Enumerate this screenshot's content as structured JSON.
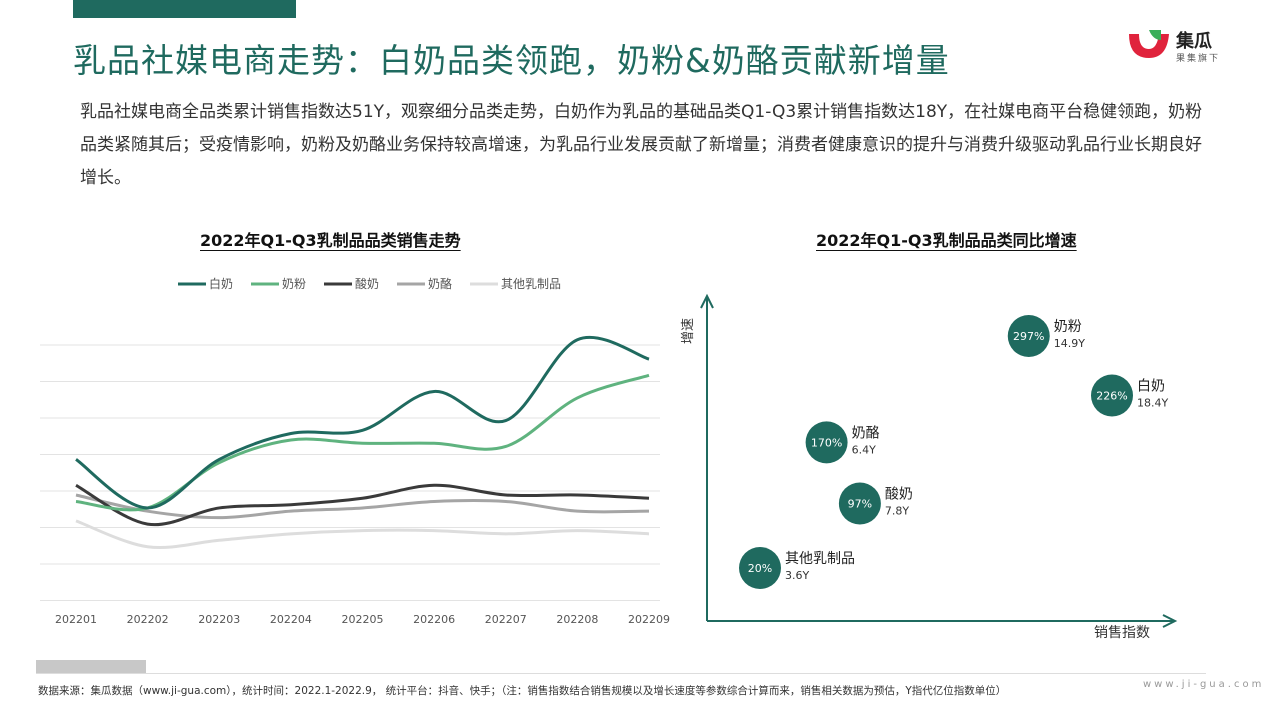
{
  "header": {
    "title": "乳品社媒电商走势：白奶品类领跑，奶粉&奶酪贡献新增量",
    "logo_name": "集瓜",
    "logo_slogan": "果集旗下"
  },
  "description": "乳品社媒电商全品类累计销售指数达51Y，观察细分品类走势，白奶作为乳品的基础品类Q1-Q3累计销售指数达18Y，在社媒电商平台稳健领跑，奶粉品类紧随其后；受疫情影响，奶粉及奶酪业务保持较高增速，为乳品行业发展贡献了新增量；消费者健康意识的提升与消费升级驱动乳品行业长期良好增长。",
  "chart_data": [
    {
      "type": "line",
      "title": "2022年Q1-Q3乳制品品类销售走势",
      "x": [
        "202201",
        "202202",
        "202203",
        "202204",
        "202205",
        "202206",
        "202207",
        "202208",
        "202209"
      ],
      "series": [
        {
          "name": "白奶",
          "color": "#1f6a5f",
          "values": [
            30,
            15,
            30,
            38,
            39,
            51,
            42,
            67,
            61
          ]
        },
        {
          "name": "奶粉",
          "color": "#5fb37f",
          "values": [
            17,
            15,
            29,
            36,
            35,
            35,
            34,
            49,
            56
          ]
        },
        {
          "name": "酸奶",
          "color": "#3a3a3a",
          "values": [
            22,
            10,
            15,
            16,
            18,
            22,
            19,
            19,
            18
          ]
        },
        {
          "name": "奶酪",
          "color": "#a5a5a5",
          "values": [
            19,
            14,
            12,
            14,
            15,
            17,
            17,
            14,
            14
          ]
        },
        {
          "name": "其他乳制品",
          "color": "#dddddd",
          "values": [
            11,
            3,
            5,
            7,
            8,
            8,
            7,
            8,
            7
          ]
        }
      ],
      "ylim": [
        -15,
        70
      ],
      "legend": "top",
      "grid": true
    },
    {
      "type": "scatter",
      "title": "2022年Q1-Q3乳制品品类同比增速",
      "xlabel": "销售指数",
      "ylabel": "增速",
      "points": [
        {
          "name": "奶粉",
          "label": "297%",
          "sub": "14.9Y",
          "x": 14.9,
          "y": 297
        },
        {
          "name": "白奶",
          "label": "226%",
          "sub": "18.4Y",
          "x": 18.4,
          "y": 226
        },
        {
          "name": "奶酪",
          "label": "170%",
          "sub": "6.4Y",
          "x": 6.4,
          "y": 170
        },
        {
          "name": "酸奶",
          "label": "97%",
          "sub": "7.8Y",
          "x": 7.8,
          "y": 97
        },
        {
          "name": "其他乳制品",
          "label": "20%",
          "sub": "3.6Y",
          "x": 3.6,
          "y": 20
        }
      ],
      "color": "#1f6a5f"
    }
  ],
  "footer": {
    "source": "数据来源：集瓜数据（www.ji-gua.com），统计时间：2022.1-2022.9，  统计平台：抖音、快手；（注：销售指数结合销售规模以及增长速度等参数综合计算而来，销售相关数据为预估，Y指代亿位指数单位）",
    "site": "www.ji-gua.com"
  }
}
